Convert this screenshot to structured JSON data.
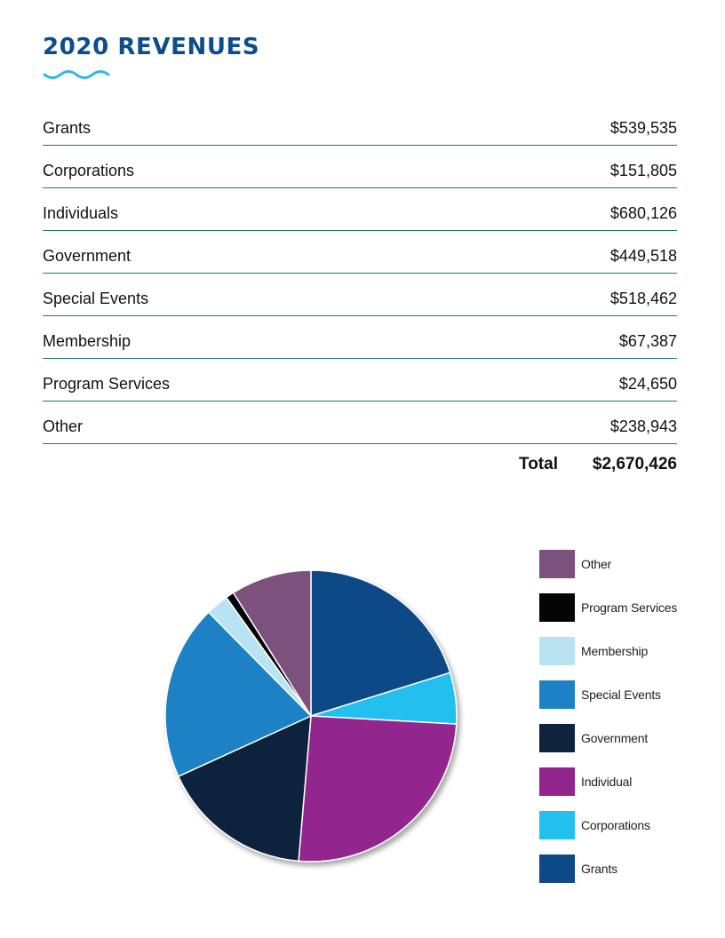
{
  "page": {
    "title": "2020 REVENUES",
    "colors": {
      "title": "#0d4d8c",
      "wave": "#2bb7e8",
      "rule": "#1f7a78"
    }
  },
  "rows": [
    {
      "label": "Grants",
      "amount": "$539,535"
    },
    {
      "label": "Corporations",
      "amount": "$151,805"
    },
    {
      "label": "Individuals",
      "amount": "$680,126"
    },
    {
      "label": "Government",
      "amount": "$449,518"
    },
    {
      "label": "Special Events",
      "amount": "$518,462"
    },
    {
      "label": "Membership",
      "amount": "$67,387"
    },
    {
      "label": "Program Services",
      "amount": "$24,650"
    },
    {
      "label": "Other",
      "amount": "$238,943"
    }
  ],
  "total": {
    "label": "Total",
    "amount": "$2,670,426"
  },
  "chart_data": {
    "type": "pie",
    "start_angle_deg": 0,
    "direction": "clockwise",
    "legend_position": "right",
    "slices": [
      {
        "name": "Grants",
        "value": 539535,
        "color": "#0c4a87"
      },
      {
        "name": "Corporations",
        "value": 151805,
        "color": "#22c0ee"
      },
      {
        "name": "Individual",
        "value": 680126,
        "color": "#92268e"
      },
      {
        "name": "Government",
        "value": 449518,
        "color": "#0f233d"
      },
      {
        "name": "Special Events",
        "value": 518462,
        "color": "#1c82c5"
      },
      {
        "name": "Membership",
        "value": 67387,
        "color": "#b7e3f3"
      },
      {
        "name": "Program Services",
        "value": 24650,
        "color": "#050505"
      },
      {
        "name": "Other",
        "value": 238943,
        "color": "#7d517d"
      }
    ],
    "legend_order": [
      "Other",
      "Program Services",
      "Membership",
      "Special Events",
      "Government",
      "Individual",
      "Corporations",
      "Grants"
    ]
  }
}
